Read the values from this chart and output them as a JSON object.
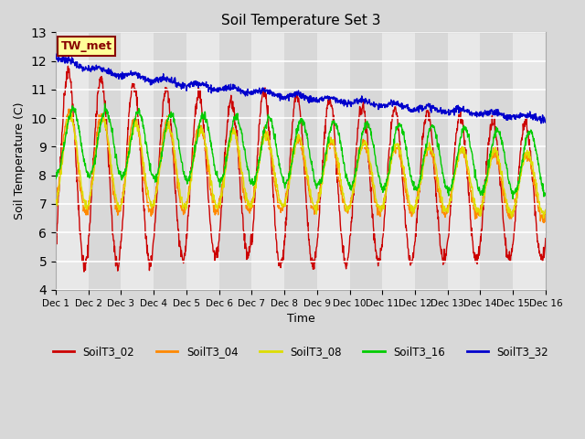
{
  "title": "Soil Temperature Set 3",
  "xlabel": "Time",
  "ylabel": "Soil Temperature (C)",
  "ylim": [
    4.0,
    13.0
  ],
  "yticks": [
    4.0,
    5.0,
    6.0,
    7.0,
    8.0,
    9.0,
    10.0,
    11.0,
    12.0,
    13.0
  ],
  "series_colors": {
    "SoilT3_02": "#cc0000",
    "SoilT3_04": "#ff8800",
    "SoilT3_08": "#dddd00",
    "SoilT3_16": "#00cc00",
    "SoilT3_32": "#0000cc"
  },
  "tw_met_box_color": "#ffff99",
  "tw_met_text_color": "#880000",
  "tw_met_border_color": "#880000",
  "bg_color": "#d8d8d8",
  "plot_bg_color": "#e8e8e8",
  "grid_color": "#c8c8c8",
  "band_color_light": "#e8e8e8",
  "band_color_dark": "#d8d8d8",
  "annotation_text": "TW_met"
}
